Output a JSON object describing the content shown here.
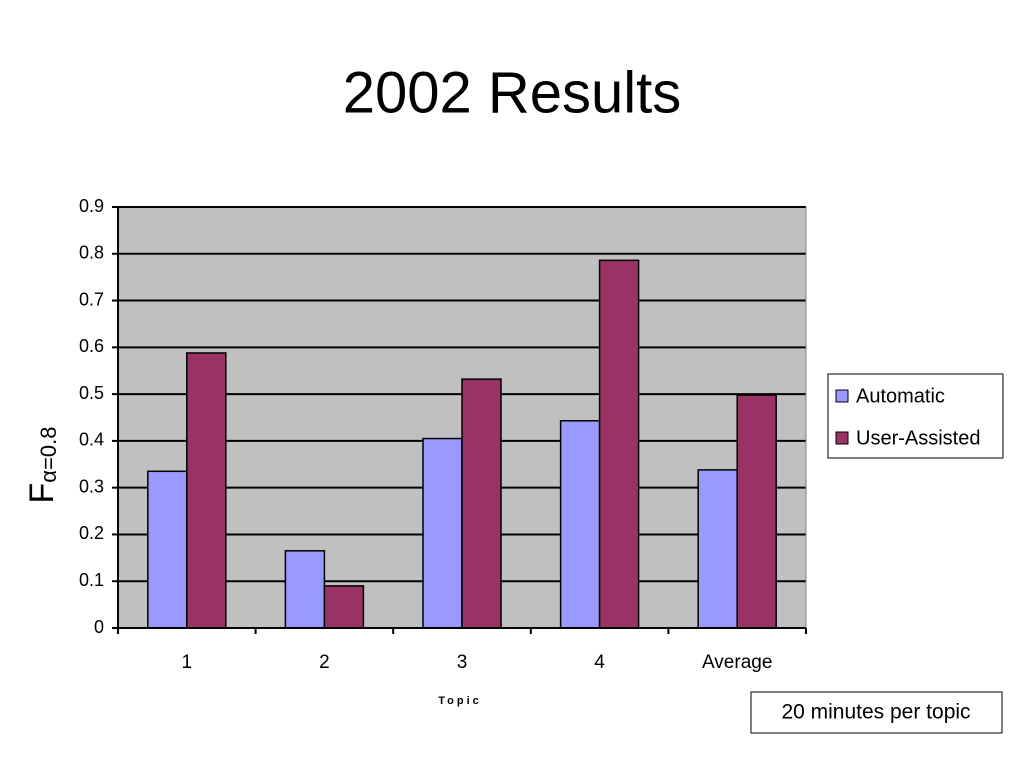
{
  "chart_data": {
    "type": "bar",
    "title": "2002 Results",
    "y_label": "F",
    "y_label_subscript": "α=0.8",
    "x_label": "Topic",
    "annotation": "20 minutes per topic",
    "categories": [
      "1",
      "2",
      "3",
      "4",
      "Average"
    ],
    "series": [
      {
        "name": "Automatic",
        "color": "#9999ff",
        "values": [
          0.335,
          0.165,
          0.405,
          0.443,
          0.338
        ]
      },
      {
        "name": "User-Assisted",
        "color": "#993366",
        "values": [
          0.588,
          0.09,
          0.532,
          0.786,
          0.498
        ]
      }
    ],
    "ylim": [
      0,
      0.9
    ],
    "yticks": [
      0,
      0.1,
      0.2,
      0.3,
      0.4,
      0.5,
      0.6,
      0.7,
      0.8,
      0.9
    ],
    "grid": true,
    "legend": "right"
  }
}
